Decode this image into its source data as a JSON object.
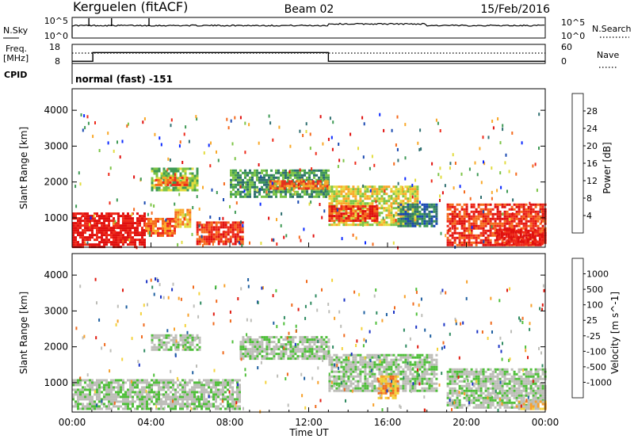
{
  "header": {
    "title": "Kerguelen (fitACF)",
    "beam": "Beam 02",
    "date": "15/Feb/2016"
  },
  "sky_panel": {
    "left_label": "N.Sky",
    "left_ticks": [
      "10^5",
      "10^0"
    ],
    "right_ticks": [
      "10^5",
      "10^0"
    ],
    "right_label": "N.Search"
  },
  "freq_panel": {
    "left_label_line1": "Freq.",
    "left_label_line2": "[MHz]",
    "left_ticks": [
      "18",
      "8"
    ],
    "right_ticks": [
      "60",
      "0"
    ],
    "right_label": "Nave",
    "cpid_label": "CPID",
    "cpid_value": "normal (fast) -151",
    "freq_steps": [
      [
        0,
        9.5
      ],
      [
        1.05,
        15.6
      ],
      [
        13.0,
        9.5
      ],
      [
        24,
        9.5
      ]
    ],
    "nave_level": 30
  },
  "power_panel": {
    "ylabel": "Slant Range [km]",
    "yticks": [
      "1000",
      "2000",
      "3000",
      "4000"
    ],
    "colorbar": {
      "label": "Power [dB]",
      "ticks": [
        "4",
        "8",
        "12",
        "16",
        "20",
        "24",
        "28"
      ],
      "colors": [
        "#0a28ff",
        "#1848b0",
        "#2f6f70",
        "#3f9a55",
        "#7cc446",
        "#e2dc3e",
        "#f9a828",
        "#f56a1c",
        "#ee2a1a",
        "#e0100e"
      ]
    }
  },
  "velocity_panel": {
    "ylabel": "Slant Range [km]",
    "yticks": [
      "1000",
      "2000",
      "3000",
      "4000"
    ],
    "colorbar": {
      "label": "Velocity [m s^-1]",
      "ticks": [
        "1000",
        "500",
        "100",
        "25",
        "-25",
        "-100",
        "-500",
        "-1000"
      ],
      "colors": [
        "#1a33c4",
        "#1e5fa0",
        "#2f8a60",
        "#4fbf3a",
        "#bdbdb8",
        "#bdbdb8",
        "#f4d23a",
        "#f7a02a",
        "#f06a1c",
        "#e01a10"
      ]
    }
  },
  "time_axis": {
    "ticks": [
      "00:00",
      "04:00",
      "08:00",
      "12:00",
      "16:00",
      "20:00",
      "00:00"
    ],
    "label": "Time UT"
  },
  "chart_data": {
    "type": "heatmap",
    "x_range_hours": [
      0,
      24
    ],
    "y_range_km": [
      180,
      4600
    ],
    "power_regions": [
      {
        "t0": 0.0,
        "t1": 3.7,
        "r0": 200,
        "r1": 1150,
        "level": 9
      },
      {
        "t0": 3.7,
        "t1": 5.2,
        "r0": 500,
        "r1": 1000,
        "level": 7
      },
      {
        "t0": 5.2,
        "t1": 6.0,
        "r0": 750,
        "r1": 1250,
        "level": 6
      },
      {
        "t0": 6.3,
        "t1": 8.6,
        "r0": 250,
        "r1": 900,
        "level": 8
      },
      {
        "t0": 4.0,
        "t1": 6.3,
        "r0": 1800,
        "r1": 2400,
        "level": 4
      },
      {
        "t0": 4.2,
        "t1": 5.8,
        "r0": 1950,
        "r1": 2150,
        "level": 7
      },
      {
        "t0": 8.0,
        "t1": 13.0,
        "r0": 1600,
        "r1": 2350,
        "level": 3
      },
      {
        "t0": 10.0,
        "t1": 13.0,
        "r0": 1800,
        "r1": 2050,
        "level": 7
      },
      {
        "t0": 13.0,
        "t1": 17.5,
        "r0": 800,
        "r1": 1900,
        "level": 5
      },
      {
        "t0": 13.0,
        "t1": 15.5,
        "r0": 950,
        "r1": 1350,
        "level": 8
      },
      {
        "t0": 16.5,
        "t1": 18.5,
        "r0": 750,
        "r1": 1400,
        "level": 2
      },
      {
        "t0": 19.0,
        "t1": 24.0,
        "r0": 250,
        "r1": 1400,
        "level": 8
      },
      {
        "t0": 21.5,
        "t1": 24.0,
        "r0": 250,
        "r1": 700,
        "level": 9
      }
    ],
    "velocity_regions": [
      {
        "t0": 0.0,
        "t1": 8.5,
        "r0": 300,
        "r1": 1100,
        "level": 4
      },
      {
        "t0": 4.0,
        "t1": 6.5,
        "r0": 1900,
        "r1": 2350,
        "level": 4
      },
      {
        "t0": 8.5,
        "t1": 13.0,
        "r0": 1700,
        "r1": 2300,
        "level": 4
      },
      {
        "t0": 13.0,
        "t1": 18.5,
        "r0": 800,
        "r1": 1800,
        "level": 4
      },
      {
        "t0": 15.5,
        "t1": 16.5,
        "r0": 600,
        "r1": 1200,
        "level": 7
      },
      {
        "t0": 19.0,
        "t1": 24.0,
        "r0": 300,
        "r1": 1400,
        "level": 4
      },
      {
        "t0": 22.5,
        "t1": 24.0,
        "r0": 250,
        "r1": 500,
        "level": 6
      }
    ]
  }
}
